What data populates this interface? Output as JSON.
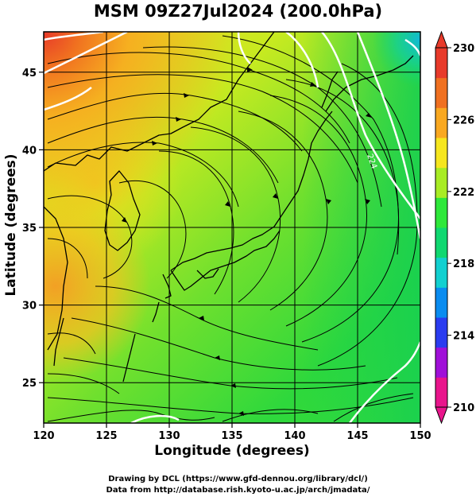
{
  "title": "MSM 09Z27Jul2024 (200.0hPa)",
  "x_axis": {
    "label": "Longitude (degrees)",
    "range": [
      120,
      150
    ],
    "ticks": [
      120,
      125,
      130,
      135,
      140,
      145,
      150
    ],
    "tick_labels": [
      "120",
      "125",
      "130",
      "135",
      "140",
      "145",
      "150"
    ]
  },
  "y_axis": {
    "label": "Latitude  (degrees)",
    "range": [
      22.4,
      47.6
    ],
    "ticks": [
      25,
      30,
      35,
      40,
      45
    ],
    "tick_labels": [
      "25",
      "30",
      "35",
      "40",
      "45"
    ]
  },
  "colorbar": {
    "range": [
      210,
      230
    ],
    "labels": [
      "230",
      "226",
      "222",
      "218",
      "214",
      "210"
    ],
    "label_values": [
      230,
      226,
      222,
      218,
      214,
      210
    ],
    "colors": [
      "#e9158c",
      "#a010d8",
      "#2a3cf0",
      "#0a8cf0",
      "#12d0d0",
      "#10d870",
      "#2ee83a",
      "#a8ec24",
      "#f6e61e",
      "#f9a820",
      "#f07020",
      "#e83a2a"
    ]
  },
  "contour_label": "224",
  "credits": [
    "Drawing by DCL (https://www.gfd-dennou.org/library/dcl/)",
    "Data from http://database.rish.kyoto-u.ac.jp/arch/jmadata/"
  ],
  "chart_data": {
    "type": "heatmap",
    "title": "MSM 09Z27Jul2024 (200.0hPa)",
    "xlabel": "Longitude (degrees)",
    "ylabel": "Latitude  (degrees)",
    "xlim": [
      120,
      150
    ],
    "ylim": [
      22.4,
      47.6
    ],
    "color_range": [
      210,
      230
    ],
    "grid": true,
    "overlays": [
      "streamlines",
      "contours",
      "coastlines"
    ],
    "regions": [
      {
        "name": "northwest corner",
        "value": 230
      },
      {
        "name": "west of Korea / East China Sea",
        "value": 227
      },
      {
        "name": "Japan Sea / central Japan",
        "value": 224
      },
      {
        "name": "east of Japan",
        "value": 222.5
      },
      {
        "name": "far northeast corner",
        "value": 218
      }
    ]
  }
}
